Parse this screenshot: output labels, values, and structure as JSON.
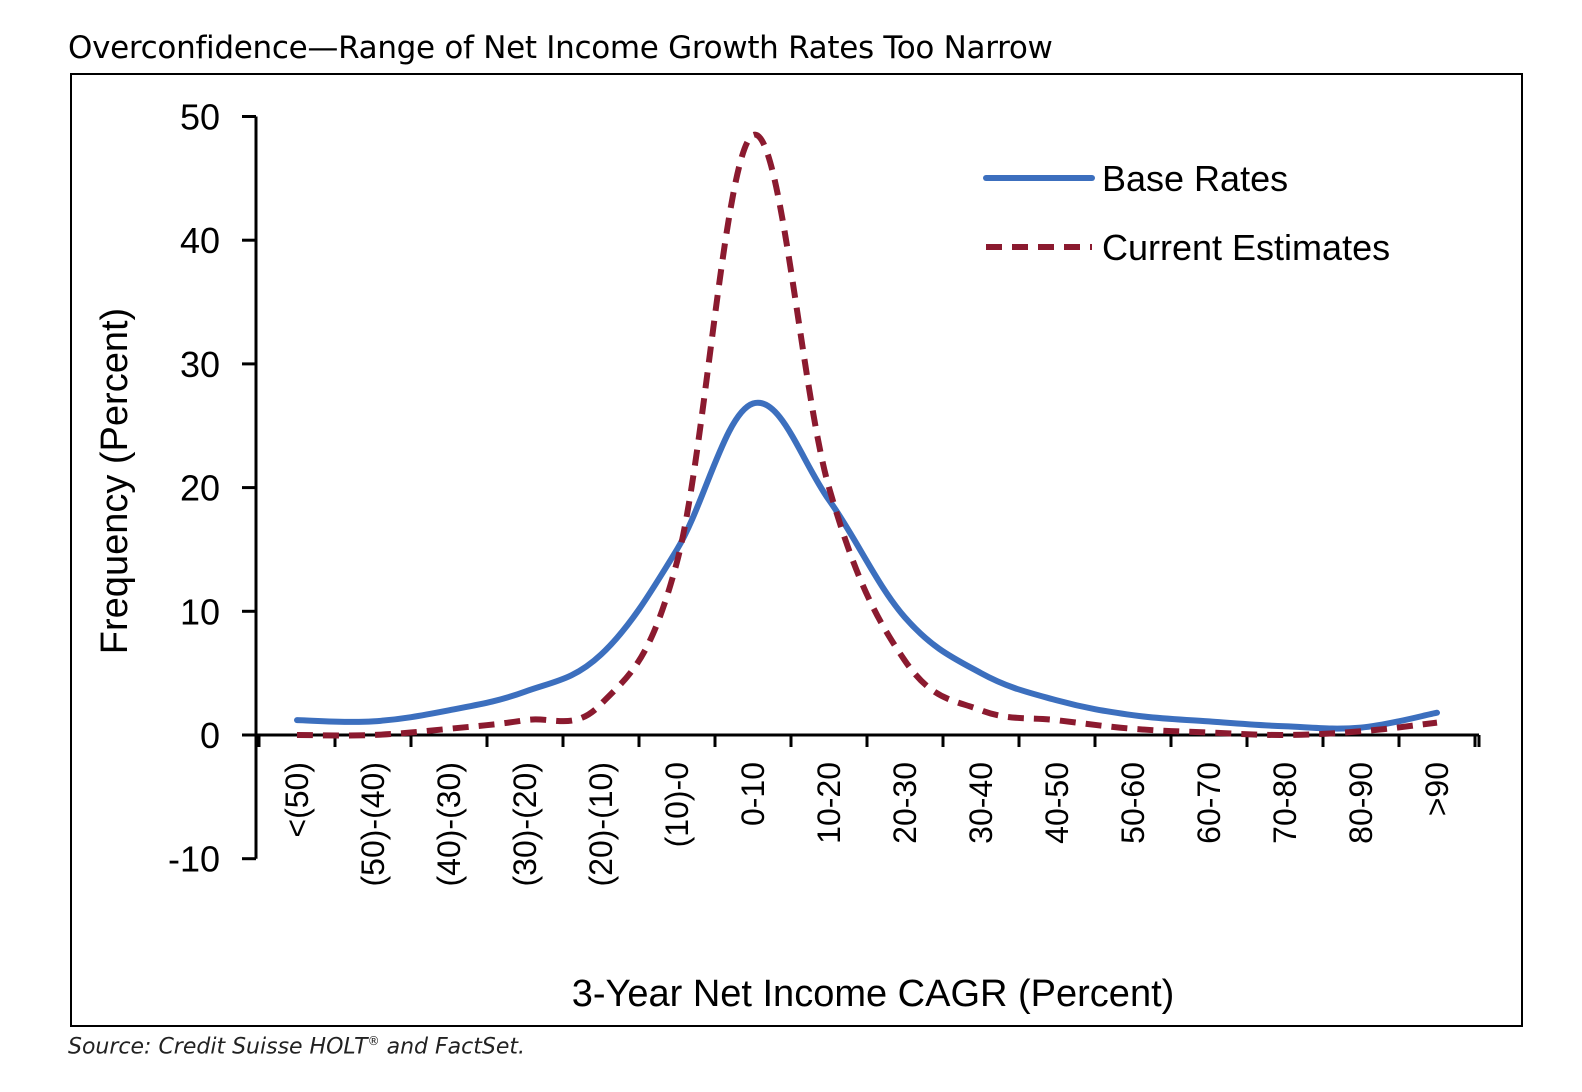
{
  "title": "Overconfidence—Range of Net Income Growth Rates Too Narrow",
  "source": {
    "prefix": "Source: Credit Suisse HOLT",
    "mark": "®",
    "suffix": " and FactSet."
  },
  "colors": {
    "base_rates": "#3c6fbe",
    "current_estimates": "#8b1a2f",
    "axis": "#000000"
  },
  "chart_data": {
    "type": "line",
    "title": "Overconfidence—Range of Net Income Growth Rates Too Narrow",
    "xlabel": "3-Year Net Income CAGR (Percent)",
    "ylabel": "Frequency (Percent)",
    "ylim": [
      -10,
      50
    ],
    "yticks": [
      "-10",
      "0",
      "10",
      "20",
      "30",
      "40",
      "50"
    ],
    "grid": false,
    "legend_position": "top-right",
    "categories": [
      "<(50)",
      "(50)-(40)",
      "(40)-(30)",
      "(30)-(20)",
      "(20)-(10)",
      "(10)-0",
      "0-10",
      "10-20",
      "20-30",
      "30-40",
      "40-50",
      "50-60",
      "60-70",
      "70-80",
      "80-90",
      ">90"
    ],
    "series": [
      {
        "name": "Base Rates",
        "style": "solid",
        "color": "#3c6fbe",
        "values": [
          1.2,
          1.1,
          2.0,
          3.5,
          6.5,
          15.0,
          26.8,
          19.0,
          9.5,
          5.0,
          2.8,
          1.6,
          1.1,
          0.7,
          0.6,
          1.8
        ]
      },
      {
        "name": "Current Estimates",
        "style": "dashed",
        "color": "#8b1a2f",
        "values": [
          0.0,
          0.0,
          0.5,
          1.2,
          2.5,
          14.0,
          48.5,
          20.0,
          6.0,
          2.0,
          1.2,
          0.5,
          0.2,
          0.0,
          0.3,
          1.0
        ]
      }
    ]
  }
}
